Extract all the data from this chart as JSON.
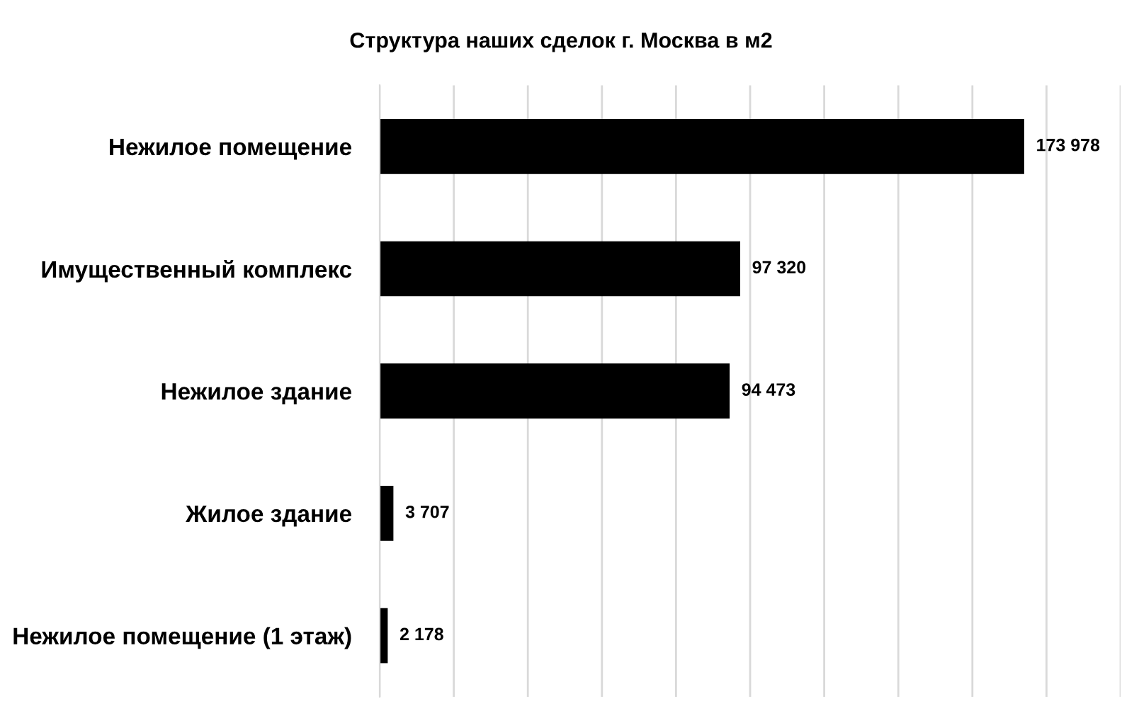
{
  "chart_data": {
    "type": "bar",
    "orientation": "horizontal",
    "title": "Структура наших сделок г. Москва в м2",
    "categories": [
      "Нежилое помещение",
      "Имущественный комплекс",
      "Нежилое здание",
      "Жилое здание",
      "Нежилое помещение (1 этаж)"
    ],
    "values": [
      173978,
      97320,
      94473,
      3707,
      2178
    ],
    "value_labels": [
      "173 978",
      "97 320",
      "94 473",
      "3 707",
      "2 178"
    ],
    "color": "#000000",
    "xlim": [
      0,
      200000
    ],
    "xticks": [
      {
        "value": 0,
        "label": null
      },
      {
        "value": 20000,
        "label": null
      },
      {
        "value": 40000,
        "label": null
      },
      {
        "value": 60000,
        "label": null
      },
      {
        "value": 80000,
        "label": null
      },
      {
        "value": 100000,
        "label": null
      },
      {
        "value": 120000,
        "label": null
      },
      {
        "value": 140000,
        "label": null
      },
      {
        "value": 160000,
        "label": null
      },
      {
        "value": 180000,
        "label": null
      },
      {
        "value": 200000,
        "label": null
      }
    ],
    "grid": "x",
    "tick_labels": "y",
    "legend": false
  }
}
